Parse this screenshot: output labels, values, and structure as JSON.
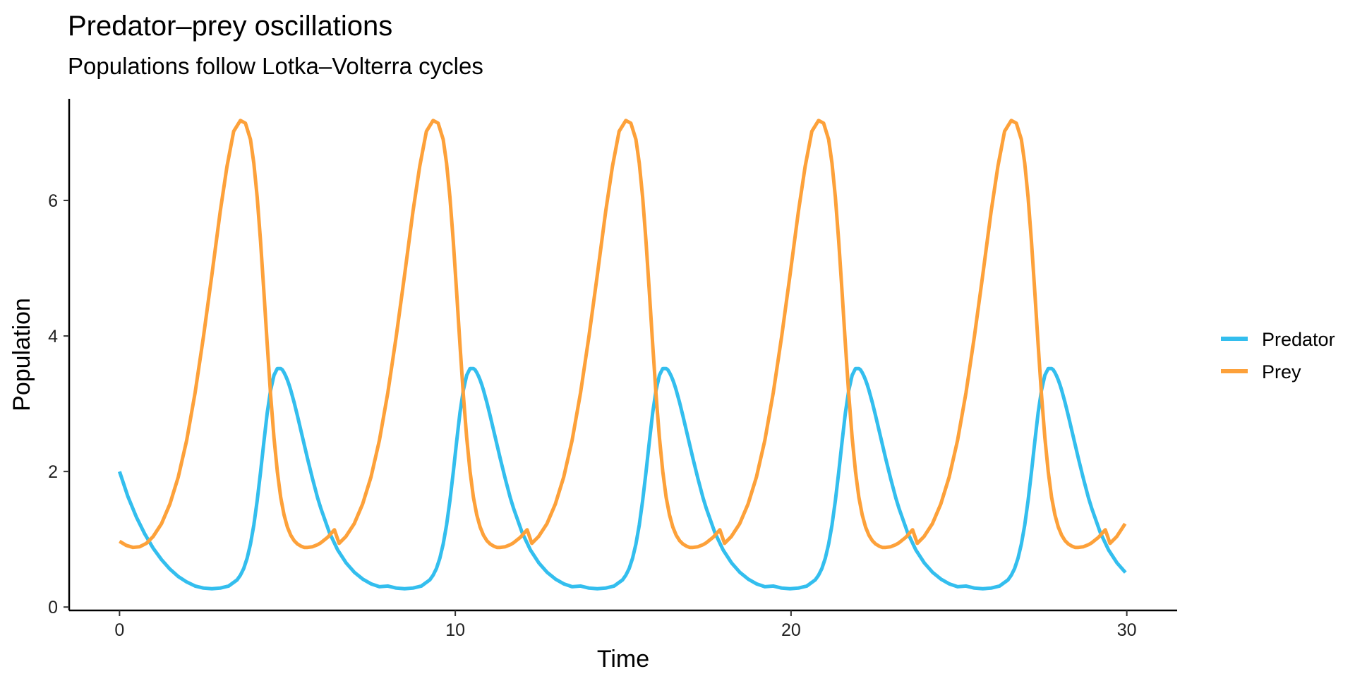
{
  "chart_data": {
    "type": "line",
    "title": "Predator–prey oscillations",
    "subtitle": "Populations follow Lotka–Volterra cycles",
    "xlabel": "Time",
    "ylabel": "Population",
    "xlim": [
      -1.5,
      31.5
    ],
    "ylim": [
      -0.05,
      7.5
    ],
    "xticks": [
      0,
      10,
      20,
      30
    ],
    "yticks": [
      0,
      2,
      4,
      6
    ],
    "grid": false,
    "legend_position": "right",
    "period": 5.74,
    "series": [
      {
        "name": "Predator",
        "color": "#33BEEE",
        "x": [
          0,
          0.25,
          0.5,
          0.75,
          1.0,
          1.25,
          1.5,
          1.75,
          2.0,
          2.25,
          2.5,
          2.75,
          3.0,
          3.25,
          3.5,
          3.6,
          3.7,
          3.8,
          3.9,
          4.0,
          4.1,
          4.2,
          4.3,
          4.4,
          4.5,
          4.6,
          4.7,
          4.8,
          4.85,
          4.9,
          4.95,
          5.0,
          5.05,
          5.1,
          5.2,
          5.3,
          5.4,
          5.5,
          5.6,
          5.75,
          5.9,
          6.0,
          6.25,
          6.5,
          6.75,
          7.0,
          7.25,
          7.5,
          7.74
        ],
        "y": [
          2.0,
          1.63,
          1.33,
          1.08,
          0.87,
          0.7,
          0.56,
          0.45,
          0.37,
          0.31,
          0.28,
          0.27,
          0.28,
          0.31,
          0.4,
          0.47,
          0.57,
          0.72,
          0.93,
          1.21,
          1.57,
          1.99,
          2.44,
          2.87,
          3.2,
          3.42,
          3.52,
          3.52,
          3.5,
          3.46,
          3.41,
          3.35,
          3.28,
          3.2,
          3.02,
          2.82,
          2.61,
          2.4,
          2.19,
          1.89,
          1.61,
          1.45,
          1.1,
          0.84,
          0.65,
          0.51,
          0.41,
          0.34,
          0.3
        ]
      },
      {
        "name": "Prey",
        "color": "#FDA13A",
        "x": [
          0,
          0.2,
          0.4,
          0.6,
          0.8,
          1.0,
          1.25,
          1.5,
          1.75,
          2.0,
          2.25,
          2.5,
          2.75,
          3.0,
          3.2,
          3.4,
          3.6,
          3.75,
          3.9,
          4.0,
          4.1,
          4.2,
          4.3,
          4.4,
          4.5,
          4.6,
          4.7,
          4.8,
          4.9,
          5.0,
          5.1,
          5.2,
          5.3,
          5.4,
          5.5,
          5.6,
          5.75,
          5.9,
          6.0,
          6.2,
          6.4
        ],
        "y": [
          0.97,
          0.91,
          0.88,
          0.89,
          0.94,
          1.04,
          1.23,
          1.52,
          1.92,
          2.46,
          3.16,
          3.99,
          4.9,
          5.84,
          6.5,
          7.02,
          7.18,
          7.14,
          6.9,
          6.55,
          6.05,
          5.4,
          4.65,
          3.87,
          3.13,
          2.5,
          2.0,
          1.62,
          1.36,
          1.18,
          1.06,
          0.98,
          0.93,
          0.9,
          0.88,
          0.88,
          0.89,
          0.92,
          0.95,
          1.03,
          1.14
        ]
      }
    ],
    "x_end": 30
  }
}
